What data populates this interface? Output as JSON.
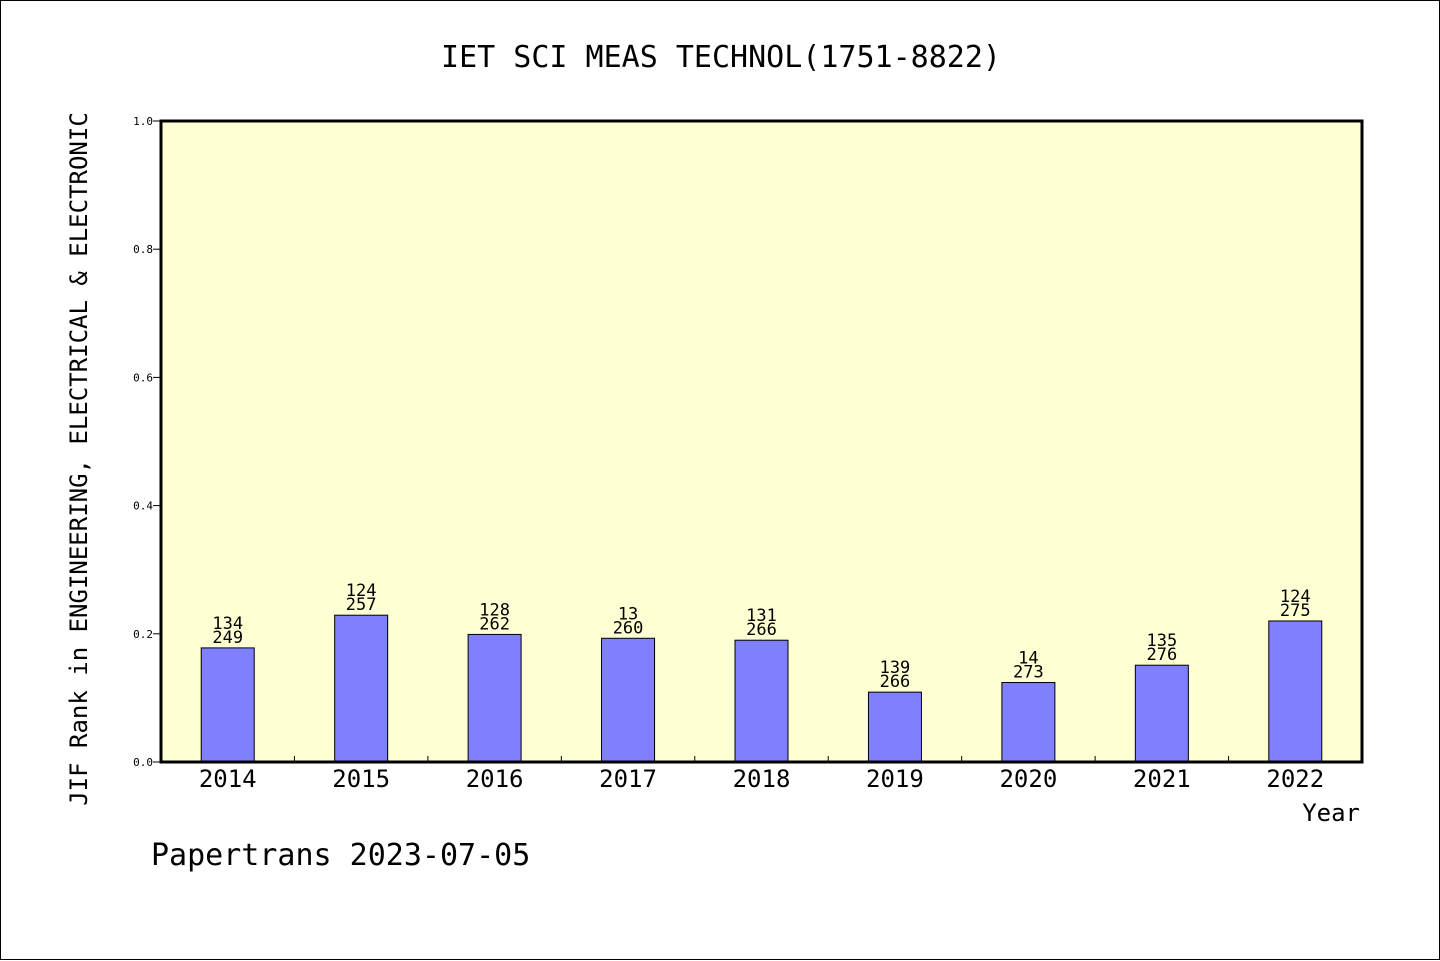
{
  "chart_data": {
    "type": "bar",
    "title": "IET SCI MEAS TECHNOL(1751-8822)",
    "ylabel": "JIF Rank in ENGINEERING, ELECTRICAL & ELECTRONIC",
    "xlabel": "Year",
    "ylim": [
      0,
      1.0
    ],
    "yticks": [
      "0.0",
      "0.2",
      "0.4",
      "0.6",
      "0.8",
      "1.0"
    ],
    "categories": [
      "2014",
      "2015",
      "2016",
      "2017",
      "2018",
      "2019",
      "2020",
      "2021",
      "2022"
    ],
    "values": [
      0.178,
      0.229,
      0.199,
      0.193,
      0.19,
      0.109,
      0.124,
      0.151,
      0.22
    ],
    "rank_labels": [
      "134",
      "124",
      "128",
      "13",
      "131",
      "139",
      "14",
      "135",
      "124"
    ],
    "total_labels": [
      "249",
      "257",
      "262",
      "260",
      "266",
      "266",
      "273",
      "276",
      "275"
    ],
    "grid": false,
    "colors": {
      "plot_bg": "#ffffd4",
      "bar_fill": "#8080ff",
      "bar_stroke": "#000000"
    }
  },
  "footer": {
    "text": "Papertrans 2023-07-05"
  }
}
